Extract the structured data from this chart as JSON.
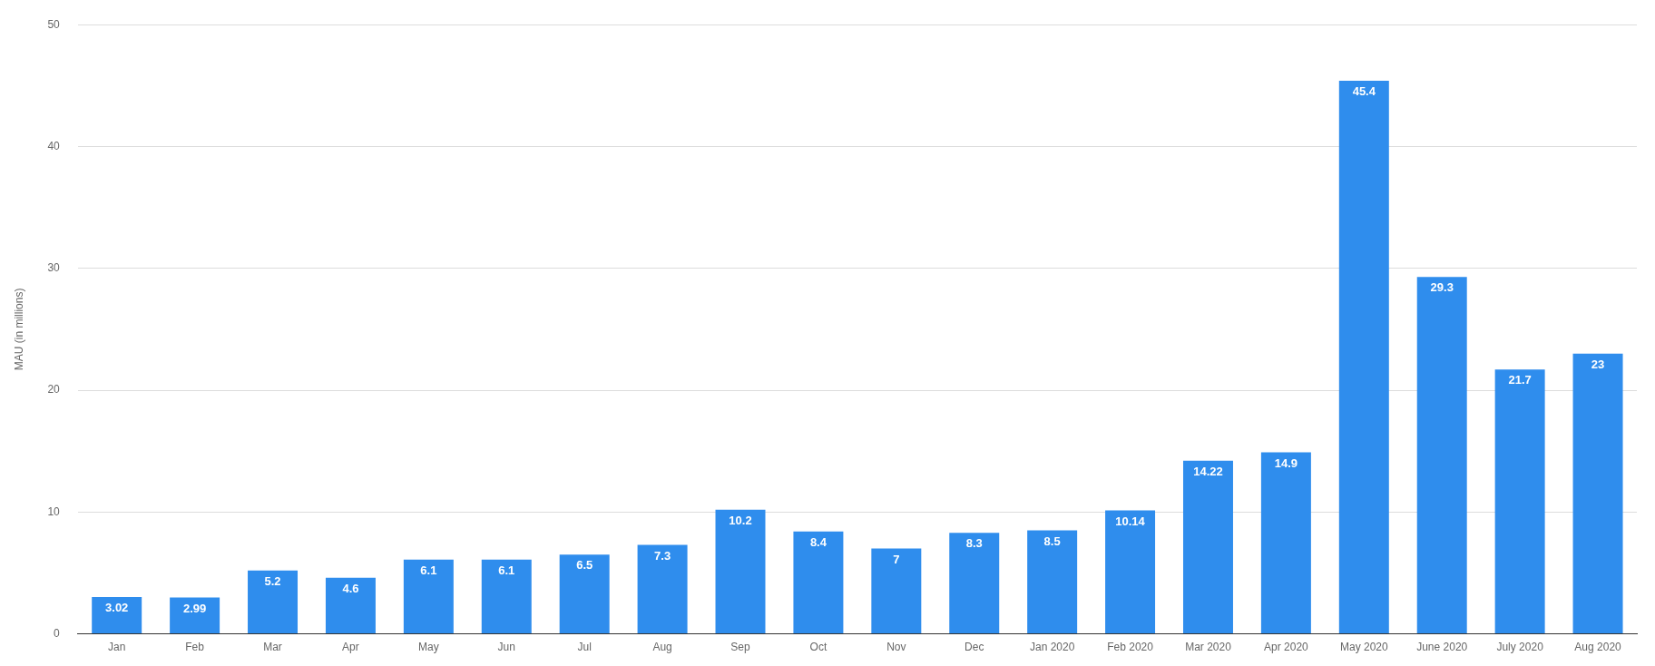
{
  "chart_data": {
    "type": "bar",
    "ylabel": "MAU (in millions)",
    "categories": [
      "Jan",
      "Feb",
      "Mar",
      "Apr",
      "May",
      "Jun",
      "Jul",
      "Aug",
      "Sep",
      "Oct",
      "Nov",
      "Dec",
      "Jan 2020",
      "Feb 2020",
      "Mar 2020",
      "Apr 2020",
      "May 2020",
      "June 2020",
      "July 2020",
      "Aug 2020"
    ],
    "values": [
      3.02,
      2.99,
      5.2,
      4.6,
      6.1,
      6.1,
      6.5,
      7.3,
      10.2,
      8.4,
      7,
      8.3,
      8.5,
      10.14,
      14.22,
      14.9,
      45.4,
      29.3,
      21.7,
      23
    ],
    "color": "#2f8ded",
    "ylim": [
      0,
      50
    ],
    "yticks": [
      0,
      10,
      20,
      30,
      40,
      50
    ],
    "grid": "y",
    "data_labels": true
  }
}
